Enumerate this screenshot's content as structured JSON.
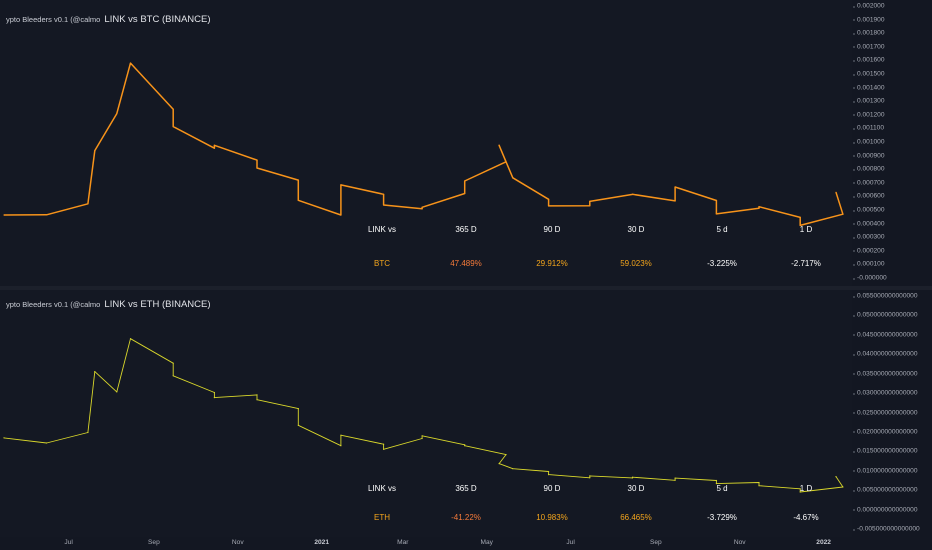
{
  "legend_prefix": "ypto Bleeders v0.1 (@calmo",
  "pane1": {
    "symbol": "LINK vs BTC (BINANCE)"
  },
  "pane2": {
    "symbol": "LINK vs ETH (BINANCE)"
  },
  "table_headers": [
    "LINK vs",
    "365 D",
    "90 D",
    "30 D",
    "5 d",
    "1 D"
  ],
  "btc_row": {
    "label": "BTC",
    "values": [
      "47.489%",
      "29.912%",
      "59.023%",
      "-3.225%",
      "-2.717%"
    ]
  },
  "eth_row": {
    "label": "ETH",
    "values": [
      "-41.22%",
      "10.983%",
      "66.465%",
      "-3.729%",
      "-4.67%"
    ]
  },
  "x_ticks": [
    "Jul",
    "Sep",
    "Nov",
    "2021",
    "Mar",
    "May",
    "Jul",
    "Sep",
    "Nov",
    "2022"
  ],
  "colors": {
    "btc_line": "#f7931a",
    "eth_line": "#d9d72b",
    "positive": "#f4a51c",
    "negative_large": "#f57a3a",
    "negative_small": "#ffffff"
  },
  "chart_data": [
    {
      "type": "line",
      "title": "LINK vs BTC (BINANCE)",
      "y_ticks": [
        "0.002000",
        "0.001900",
        "0.001800",
        "0.001700",
        "0.001600",
        "0.001500",
        "0.001400",
        "0.001300",
        "0.001200",
        "0.001100",
        "0.001000",
        "0.000900",
        "0.000800",
        "0.000700",
        "0.000600",
        "0.000500",
        "0.000400",
        "0.000300",
        "0.000200",
        "0.000100",
        "-0.000000"
      ],
      "ylim": [
        0,
        0.002
      ],
      "x": [
        "2020-05",
        "2020-06",
        "2020-07",
        "2020-07-20",
        "2020-08-05",
        "2020-08-15",
        "2020-09",
        "2020-09-15",
        "2020-10",
        "2020-10-15",
        "2020-11",
        "2020-11-15",
        "2020-12",
        "2020-12-15",
        "2021-01",
        "2021-01-15",
        "2021-02",
        "2021-02-15",
        "2021-03",
        "2021-03-15",
        "2021-04",
        "2021-04-15",
        "2021-05",
        "2021-05-10",
        "2021-05-20",
        "2021-06",
        "2021-06-15",
        "2021-07",
        "2021-07-15",
        "2021-08",
        "2021-08-15",
        "2021-09",
        "2021-09-15",
        "2021-10",
        "2021-10-15",
        "2021-11",
        "2021-11-15",
        "2021-12",
        "2021-12-15",
        "2022-01",
        "2022-01-10"
      ],
      "series": [
        {
          "values": [
            0.00045,
            0.00046,
            0.00055,
            0.00095,
            0.0012,
            0.00158,
            0.00125,
            0.0011,
            0.00095,
            0.00098,
            0.00088,
            0.0008,
            0.00072,
            0.00058,
            0.00045,
            0.00068,
            0.00062,
            0.00055,
            0.0005,
            0.00052,
            0.00063,
            0.0007,
            0.00085,
            0.00098,
            0.00075,
            0.00057,
            0.00053,
            0.00054,
            0.00055,
            0.00061,
            0.00062,
            0.00058,
            0.00066,
            0.00057,
            0.00048,
            0.0005,
            0.00052,
            0.00045,
            0.0004,
            0.00046,
            0.00063
          ]
        }
      ]
    },
    {
      "type": "line",
      "title": "LINK vs ETH (BINANCE)",
      "y_ticks": [
        "0.055000000000000",
        "0.050000000000000",
        "0.045000000000000",
        "0.040000000000000",
        "0.035000000000000",
        "0.030000000000000",
        "0.025000000000000",
        "0.020000000000000",
        "0.015000000000000",
        "0.010000000000000",
        "0.005000000000000",
        "0.000000000000000",
        "-0.005000000000000"
      ],
      "ylim": [
        -0.005,
        0.055
      ],
      "x": [
        "2020-05",
        "2020-06",
        "2020-07",
        "2020-07-20",
        "2020-08-05",
        "2020-08-15",
        "2020-09",
        "2020-09-15",
        "2020-10",
        "2020-10-15",
        "2020-11",
        "2020-11-15",
        "2020-12",
        "2020-12-15",
        "2021-01",
        "2021-01-15",
        "2021-02",
        "2021-02-15",
        "2021-03",
        "2021-03-15",
        "2021-04",
        "2021-04-15",
        "2021-05",
        "2021-05-10",
        "2021-05-20",
        "2021-06",
        "2021-06-15",
        "2021-07",
        "2021-07-15",
        "2021-08",
        "2021-08-15",
        "2021-09",
        "2021-09-15",
        "2021-10",
        "2021-10-15",
        "2021-11",
        "2021-11-15",
        "2021-12",
        "2021-12-15",
        "2022-01",
        "2022-01-10"
      ],
      "series": [
        {
          "values": [
            0.018,
            0.017,
            0.02,
            0.036,
            0.03,
            0.044,
            0.038,
            0.034,
            0.03,
            0.029,
            0.03,
            0.028,
            0.026,
            0.022,
            0.016,
            0.019,
            0.017,
            0.016,
            0.018,
            0.019,
            0.017,
            0.016,
            0.014,
            0.012,
            0.011,
            0.0095,
            0.009,
            0.0085,
            0.0082,
            0.008,
            0.0085,
            0.008,
            0.0078,
            0.0075,
            0.007,
            0.0065,
            0.006,
            0.0055,
            0.005,
            0.0055,
            0.0085
          ]
        }
      ]
    }
  ]
}
